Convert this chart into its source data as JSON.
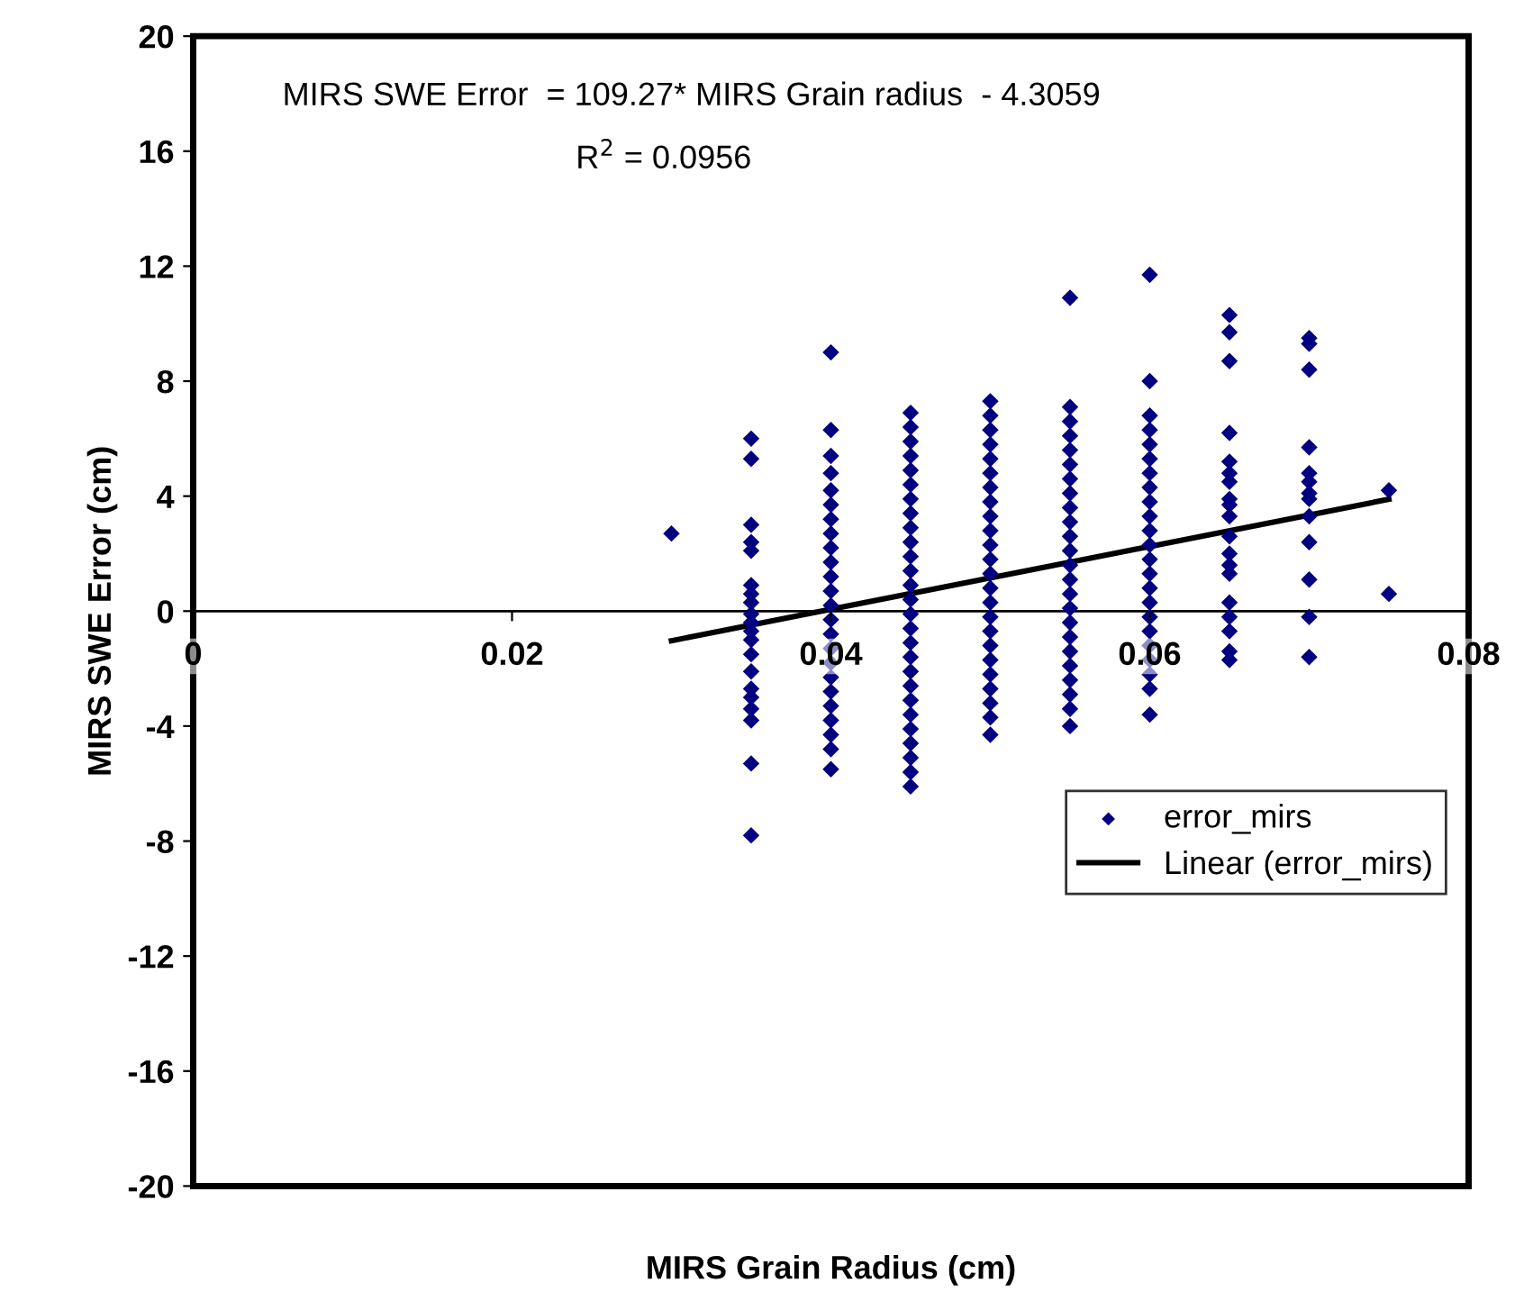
{
  "chart_data": {
    "type": "scatter",
    "xlabel": "MIRS Grain Radius (cm)",
    "ylabel": "MIRS SWE Error (cm)",
    "annotations": [
      "MIRS SWE Error  = 109.27* MIRS Grain radius  - 4.3059",
      "R$^{2}$ = 0.0956"
    ],
    "xlim": [
      0,
      0.08
    ],
    "xticks": [
      0,
      0.02,
      0.04,
      0.06,
      0.08
    ],
    "ylim": [
      -20,
      20
    ],
    "yticks": [
      -20,
      -16,
      -12,
      -8,
      -4,
      0,
      4,
      8,
      12,
      16,
      20
    ],
    "grid": false,
    "legend": "bottom right",
    "marker": "diamond",
    "series": [
      {
        "name": "error_mirs",
        "color": "#000080",
        "x": [
          0.03
        ],
        "values": [
          2.7
        ]
      },
      {
        "color": "#000080",
        "x": [
          0.035,
          0.035,
          0.035,
          0.035,
          0.035,
          0.035,
          0.035,
          0.035,
          0.035,
          0.035,
          0.035,
          0.035,
          0.035,
          0.035,
          0.035,
          0.035,
          0.035,
          0.035,
          0.035,
          0.035
        ],
        "values": [
          6.0,
          5.3,
          3.0,
          2.4,
          2.1,
          0.9,
          0.6,
          0.3,
          -0.1,
          -0.4,
          -0.7,
          -1.0,
          -1.5,
          -2.1,
          -2.7,
          -3.0,
          -3.4,
          -3.8,
          -5.3,
          -7.8
        ]
      },
      {
        "color": "#000080",
        "x": [
          0.04,
          0.04,
          0.04,
          0.04,
          0.04,
          0.04,
          0.04,
          0.04,
          0.04,
          0.04,
          0.04,
          0.04,
          0.04,
          0.04,
          0.04,
          0.04,
          0.04,
          0.04,
          0.04,
          0.04,
          0.04,
          0.04,
          0.04,
          0.04
        ],
        "values": [
          9.0,
          6.3,
          5.4,
          4.8,
          4.2,
          3.7,
          3.2,
          2.7,
          2.2,
          1.7,
          1.2,
          0.7,
          0.2,
          -0.3,
          -0.8,
          -1.3,
          -1.8,
          -2.3,
          -2.8,
          -3.3,
          -3.8,
          -4.3,
          -4.8,
          -5.5
        ]
      },
      {
        "color": "#000080",
        "x": [
          0.045,
          0.045,
          0.045,
          0.045,
          0.045,
          0.045,
          0.045,
          0.045,
          0.045,
          0.045,
          0.045,
          0.045,
          0.045,
          0.045,
          0.045,
          0.045,
          0.045,
          0.045,
          0.045,
          0.045,
          0.045,
          0.045,
          0.045,
          0.045,
          0.045,
          0.045,
          0.045
        ],
        "values": [
          6.9,
          6.4,
          5.9,
          5.4,
          4.9,
          4.4,
          3.9,
          3.4,
          2.9,
          2.4,
          1.9,
          1.4,
          0.9,
          0.4,
          -0.1,
          -0.6,
          -1.1,
          -1.6,
          -2.1,
          -2.6,
          -3.1,
          -3.6,
          -4.1,
          -4.6,
          -5.1,
          -5.6,
          -6.1
        ]
      },
      {
        "color": "#000080",
        "x": [
          0.05,
          0.05,
          0.05,
          0.05,
          0.05,
          0.05,
          0.05,
          0.05,
          0.05,
          0.05,
          0.05,
          0.05,
          0.05,
          0.05,
          0.05,
          0.05,
          0.05,
          0.05,
          0.05,
          0.05,
          0.05,
          0.05,
          0.05,
          0.05
        ],
        "values": [
          7.3,
          6.8,
          6.3,
          5.8,
          5.3,
          4.8,
          4.3,
          3.8,
          3.3,
          2.8,
          2.3,
          1.8,
          1.3,
          0.8,
          0.3,
          -0.2,
          -0.7,
          -1.2,
          -1.7,
          -2.2,
          -2.7,
          -3.2,
          -3.7,
          -4.3
        ]
      },
      {
        "color": "#000080",
        "x": [
          0.055,
          0.055,
          0.055,
          0.055,
          0.055,
          0.055,
          0.055,
          0.055,
          0.055,
          0.055,
          0.055,
          0.055,
          0.055,
          0.055,
          0.055,
          0.055,
          0.055,
          0.055,
          0.055,
          0.055,
          0.055,
          0.055,
          0.055,
          0.055
        ],
        "values": [
          10.9,
          7.1,
          6.6,
          6.1,
          5.6,
          5.1,
          4.6,
          4.1,
          3.6,
          3.1,
          2.6,
          2.1,
          1.6,
          1.1,
          0.6,
          0.1,
          -0.4,
          -0.9,
          -1.4,
          -1.9,
          -2.4,
          -2.9,
          -3.4,
          -4.0
        ]
      },
      {
        "color": "#000080",
        "x": [
          0.06,
          0.06,
          0.06,
          0.06,
          0.06,
          0.06,
          0.06,
          0.06,
          0.06,
          0.06,
          0.06,
          0.06,
          0.06,
          0.06,
          0.06,
          0.06,
          0.06,
          0.06,
          0.06,
          0.06,
          0.06,
          0.06,
          0.06
        ],
        "values": [
          11.7,
          8.0,
          6.8,
          6.3,
          5.8,
          5.3,
          4.8,
          4.3,
          3.8,
          3.3,
          2.8,
          2.3,
          1.8,
          1.3,
          0.8,
          0.3,
          -0.2,
          -0.7,
          -1.2,
          -1.7,
          -2.2,
          -2.7,
          -3.6
        ]
      },
      {
        "color": "#000080",
        "x": [
          0.065,
          0.065,
          0.065,
          0.065,
          0.065,
          0.065,
          0.065,
          0.065,
          0.065,
          0.065,
          0.065,
          0.065,
          0.065,
          0.065,
          0.065,
          0.065,
          0.065,
          0.065,
          0.065
        ],
        "values": [
          10.3,
          9.7,
          8.7,
          6.2,
          5.2,
          4.8,
          4.5,
          3.9,
          3.7,
          3.3,
          2.6,
          2.0,
          1.6,
          1.3,
          0.3,
          -0.2,
          -0.7,
          -1.4,
          -1.7
        ]
      },
      {
        "color": "#000080",
        "x": [
          0.07,
          0.07,
          0.07,
          0.07,
          0.07,
          0.07,
          0.07,
          0.07,
          0.07,
          0.07,
          0.07,
          0.07,
          0.07
        ],
        "values": [
          9.5,
          9.3,
          8.4,
          5.7,
          4.8,
          4.5,
          4.1,
          3.9,
          3.3,
          2.4,
          1.1,
          -0.2,
          -1.6
        ]
      },
      {
        "color": "#000080",
        "x": [
          0.075,
          0.075
        ],
        "values": [
          4.2,
          0.6
        ]
      },
      {
        "name": "Linear (error_mirs)",
        "type": "line",
        "color": "#000000",
        "marker": "none",
        "line_style": "solid",
        "x": [
          0.03,
          0.075
        ],
        "values": [
          -1.03,
          3.89
        ]
      }
    ]
  }
}
